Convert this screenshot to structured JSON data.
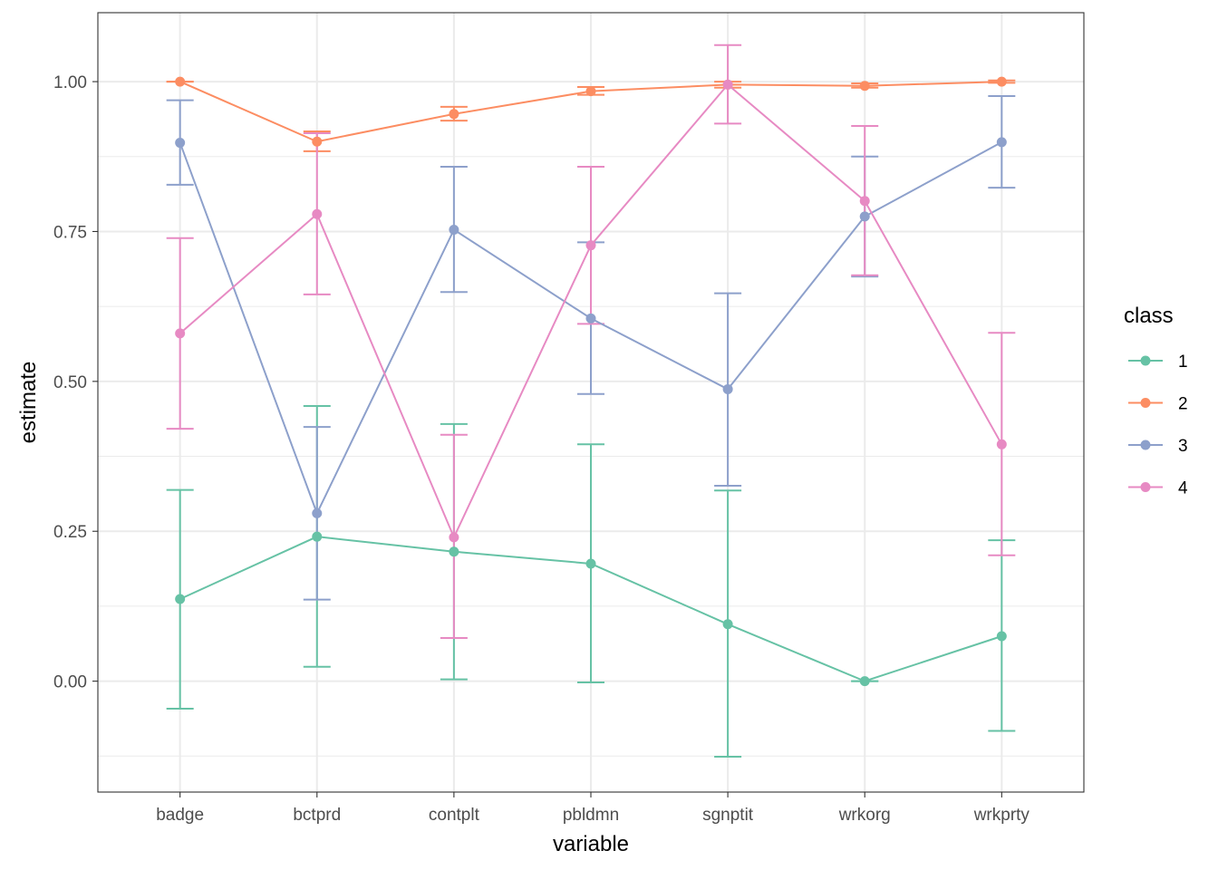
{
  "chart_data": {
    "type": "line",
    "title": "",
    "xlabel": "variable",
    "ylabel": "estimate",
    "categories": [
      "badge",
      "bctprd",
      "contplt",
      "pbldmn",
      "sgnptit",
      "wrkorg",
      "wrkprty"
    ],
    "ylim": [
      -0.185,
      1.115
    ],
    "yticks": [
      0.0,
      0.25,
      0.5,
      0.75,
      1.0
    ],
    "ytick_labels": [
      "0.00",
      "0.25",
      "0.50",
      "0.75",
      "1.00"
    ],
    "grid": true,
    "legend": {
      "title": "class",
      "position": "right"
    },
    "series": [
      {
        "name": "1",
        "color": "#66C2A5",
        "values": [
          0.137,
          0.241,
          0.216,
          0.196,
          0.095,
          0.0,
          0.075
        ],
        "lower": [
          -0.046,
          0.024,
          0.003,
          -0.002,
          -0.126,
          0.0,
          -0.083
        ],
        "upper": [
          0.319,
          0.459,
          0.429,
          0.395,
          0.318,
          0.0,
          0.235
        ]
      },
      {
        "name": "2",
        "color": "#FC8D62",
        "values": [
          1.0,
          0.9,
          0.946,
          0.984,
          0.995,
          0.993,
          1.0
        ],
        "lower": [
          1.0,
          0.884,
          0.935,
          0.978,
          0.99,
          0.99,
          0.998
        ],
        "upper": [
          1.0,
          0.917,
          0.958,
          0.991,
          1.0,
          0.997,
          1.002
        ]
      },
      {
        "name": "3",
        "color": "#8DA0CB",
        "values": [
          0.898,
          0.28,
          0.753,
          0.605,
          0.487,
          0.775,
          0.899
        ],
        "lower": [
          0.828,
          0.136,
          0.649,
          0.479,
          0.326,
          0.675,
          0.823
        ],
        "upper": [
          0.969,
          0.424,
          0.858,
          0.732,
          0.647,
          0.875,
          0.976
        ]
      },
      {
        "name": "4",
        "color": "#E78AC3",
        "values": [
          0.58,
          0.779,
          0.24,
          0.727,
          0.995,
          0.801,
          0.395
        ],
        "lower": [
          0.421,
          0.645,
          0.072,
          0.596,
          0.93,
          0.677,
          0.21
        ],
        "upper": [
          0.739,
          0.914,
          0.411,
          0.858,
          1.061,
          0.926,
          0.581
        ]
      }
    ]
  }
}
